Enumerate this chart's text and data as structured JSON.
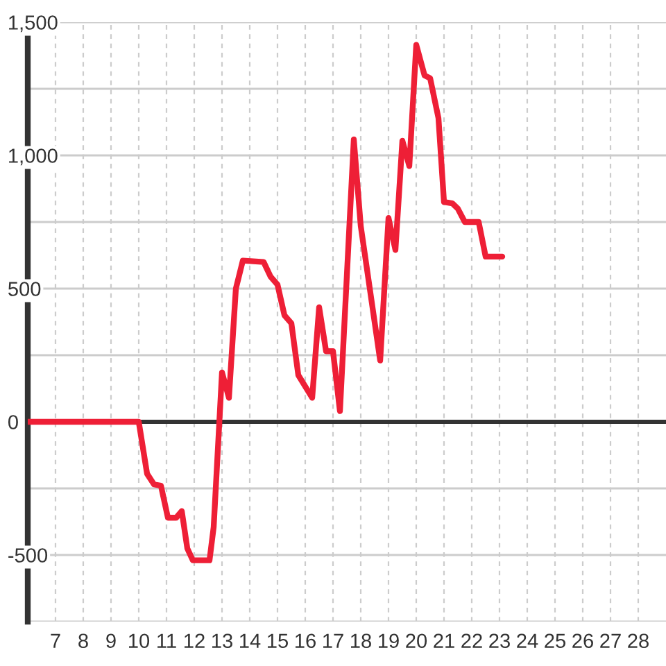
{
  "chart_data": {
    "type": "line",
    "x": [
      6,
      10,
      10.3,
      10.55,
      10.8,
      11.05,
      11.35,
      11.55,
      11.75,
      11.95,
      12.55,
      12.7,
      13,
      13.25,
      13.5,
      13.75,
      14.5,
      14.75,
      15,
      15.25,
      15.5,
      15.75,
      16.25,
      16.5,
      16.75,
      17,
      17.25,
      17.75,
      18,
      18.7,
      19,
      19.25,
      19.5,
      19.75,
      20,
      20.3,
      20.5,
      20.8,
      21,
      21.3,
      21.5,
      21.75,
      22.25,
      22.5,
      23.1
    ],
    "series": [
      {
        "color": "#ee1f36",
        "values": [
          0,
          0,
          -195,
          -235,
          -240,
          -360,
          -360,
          -335,
          -475,
          -520,
          -520,
          -395,
          185,
          90,
          500,
          605,
          600,
          545,
          515,
          400,
          370,
          175,
          90,
          430,
          265,
          265,
          40,
          1060,
          735,
          230,
          765,
          645,
          1055,
          960,
          1415,
          1300,
          1290,
          1140,
          825,
          820,
          800,
          750,
          750,
          620,
          620
        ]
      }
    ],
    "xlim": [
      6,
      29
    ],
    "ylim": [
      -750,
      1500
    ],
    "xticks": [
      7,
      8,
      9,
      10,
      11,
      12,
      13,
      14,
      15,
      16,
      17,
      18,
      19,
      20,
      21,
      22,
      23,
      24,
      25,
      26,
      27,
      28
    ],
    "yticks": [
      {
        "value": -750,
        "label": null
      },
      -500,
      {
        "value": -250,
        "label": null
      },
      0,
      {
        "value": 250,
        "label": null
      },
      500,
      {
        "value": 750,
        "label": null
      },
      {
        "value": 1000,
        "label": "1,000"
      },
      {
        "value": 1250,
        "label": null
      },
      {
        "value": 1500,
        "label": "1,500"
      }
    ],
    "grid": true,
    "ref_lines": [
      {
        "axis": "y",
        "value": 0,
        "color": "#333333"
      }
    ],
    "marker": "none",
    "line_style": "solid"
  }
}
